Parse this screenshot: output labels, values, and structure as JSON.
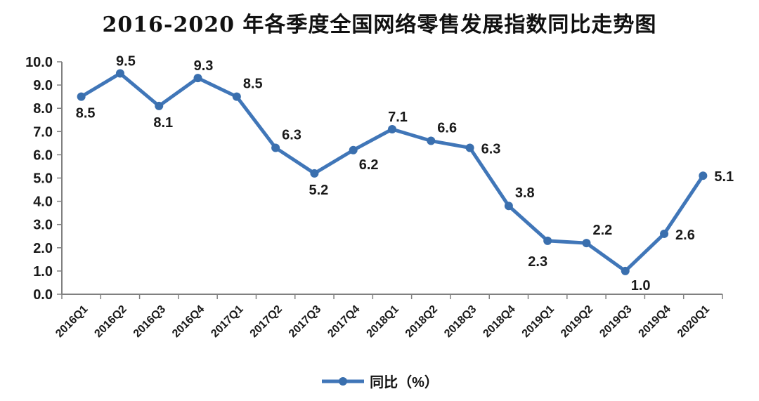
{
  "chart_data": {
    "type": "line",
    "title": "2016-2020 年各季度全国网络零售发展指数同比走势图",
    "categories": [
      "2016Q1",
      "2016Q2",
      "2016Q3",
      "2016Q4",
      "2017Q1",
      "2017Q2",
      "2017Q3",
      "2017Q4",
      "2018Q1",
      "2018Q2",
      "2018Q3",
      "2018Q4",
      "2019Q1",
      "2019Q2",
      "2019Q3",
      "2019Q4",
      "2020Q1"
    ],
    "series": [
      {
        "name": "同比（%）",
        "values": [
          8.5,
          9.5,
          8.1,
          9.3,
          8.5,
          6.3,
          5.2,
          6.2,
          7.1,
          6.6,
          6.3,
          3.8,
          2.3,
          2.2,
          1.0,
          2.6,
          5.1
        ]
      }
    ],
    "xlabel": "",
    "ylabel": "",
    "ylim": [
      0.0,
      10.0
    ],
    "ytick_step": 1.0,
    "ytick_labels": [
      "0.0",
      "1.0",
      "2.0",
      "3.0",
      "4.0",
      "5.0",
      "6.0",
      "7.0",
      "8.0",
      "9.0",
      "10.0"
    ],
    "grid": false,
    "legend_position": "bottom",
    "legend_label": "同比（%）",
    "label_positions": [
      "below",
      "above",
      "below",
      "above",
      "above-right",
      "above-right",
      "below",
      "below-right",
      "above",
      "above-right",
      "right",
      "above-right",
      "below-left",
      "above-right",
      "below-right",
      "right",
      "right"
    ],
    "colors": {
      "line": "#4076B8",
      "marker": "#3A6FAE",
      "axis": "#808080",
      "data_label": "#1a1a1a",
      "tick_label": "#1a1a1a",
      "title": "#111111"
    }
  }
}
